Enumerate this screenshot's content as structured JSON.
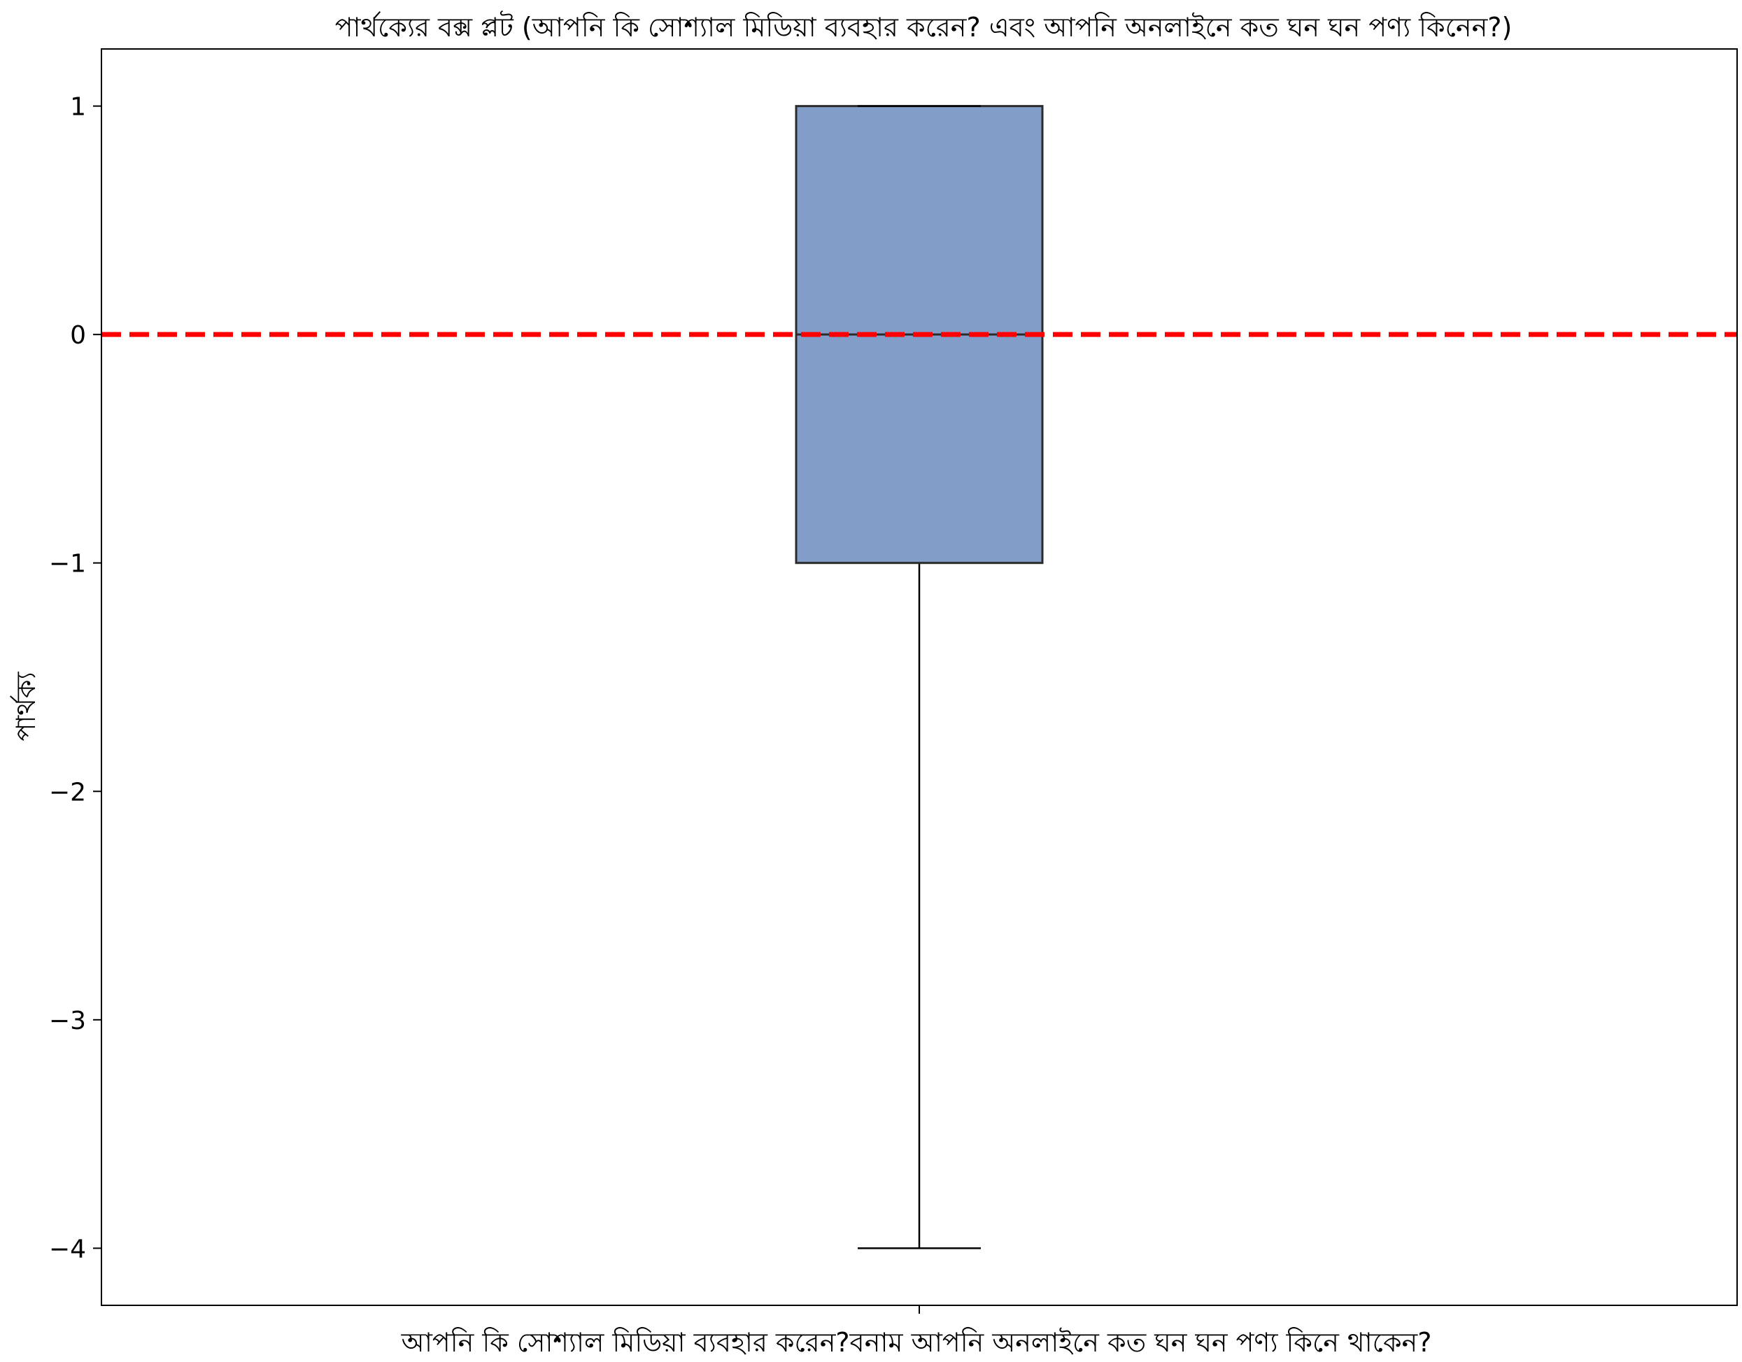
{
  "chart_data": {
    "type": "box",
    "title": "পার্থক্যের বক্স প্লট (আপনি কি সোশ্যাল মিডিয়া ব্যবহার করেন? এবং আপনি অনলাইনে কত ঘন ঘন পণ্য কিনেন?)",
    "xlabel": "আপনি কি সোশ্যাল মিডিয়া ব্যবহার করেন?বনাম আপনি অনলাইনে কত ঘন ঘন পণ্য কিনে থাকেন?",
    "ylabel": "পার্থক্য",
    "ylim": [
      -4.25,
      1.25
    ],
    "yticks": [
      1,
      0,
      -1,
      -2,
      -3,
      -4
    ],
    "ytick_labels": [
      "1",
      "0",
      "−1",
      "−2",
      "−3",
      "−4"
    ],
    "boxes": [
      {
        "whisker_low": -4,
        "q1": -1,
        "median": 0,
        "q3": 1,
        "whisker_high": 1,
        "fill_color": "#829dc7",
        "edge_color": "#2b2b2b",
        "median_color": "#2b2b2b"
      }
    ],
    "reference_line": {
      "y": 0,
      "color": "#ff0000",
      "style": "dashed"
    },
    "grid": false,
    "legend": "none"
  }
}
